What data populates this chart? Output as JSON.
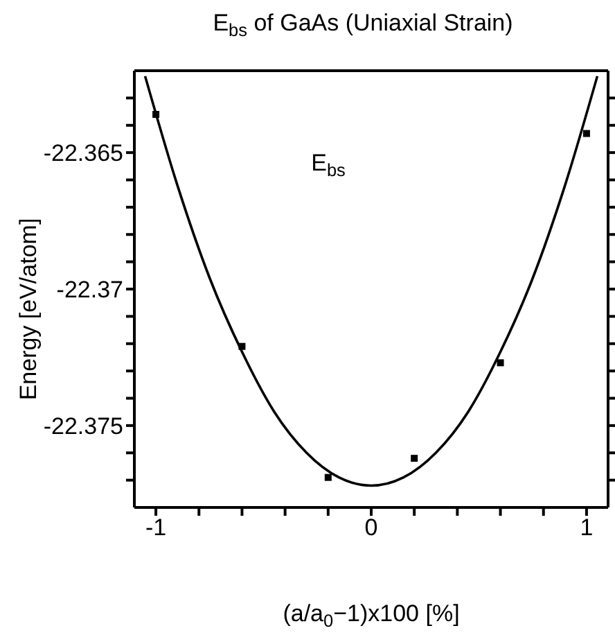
{
  "chart_data": {
    "type": "scatter",
    "title": "E$_{bs}$ of GaAs (Uniaxial Strain)",
    "xlabel": "(a/a$_{0}$−1)x100 [%]",
    "ylabel": "Energy [eV/atom]",
    "annotations": [
      "E$_{bs}$"
    ],
    "series": [
      {
        "color": "#000000",
        "marker": "square",
        "x": [
          -1.0,
          -0.6,
          -0.2,
          0.2,
          0.6,
          1.0
        ],
        "values": [
          -22.3636,
          -22.3721,
          -22.3769,
          -22.3762,
          -22.3727,
          -22.3643
        ]
      },
      {
        "type": "line",
        "color": "#000000",
        "marker": "none",
        "x": [
          -1.05,
          -0.9,
          -0.75,
          -0.6,
          -0.45,
          -0.3,
          -0.15,
          0,
          0.15,
          0.3,
          0.45,
          0.6,
          0.75,
          0.9,
          1.05
        ],
        "values": [
          -22.3622,
          -22.3662,
          -22.3696,
          -22.3723,
          -22.3745,
          -22.376,
          -22.3769,
          -22.3772,
          -22.3769,
          -22.376,
          -22.3745,
          -22.3723,
          -22.3696,
          -22.3662,
          -22.3622
        ]
      }
    ],
    "xlim": [
      -1.1,
      1.1
    ],
    "xticks": [
      -1,
      {
        "value": -0.8,
        "label": null
      },
      {
        "value": -0.6,
        "label": null
      },
      {
        "value": -0.4,
        "label": null
      },
      {
        "value": -0.2,
        "label": null
      },
      0,
      {
        "value": 0.2,
        "label": null
      },
      {
        "value": 0.4,
        "label": null
      },
      {
        "value": 0.6,
        "label": null
      },
      {
        "value": 0.8,
        "label": null
      },
      1
    ],
    "ylim": [
      -22.378,
      -22.362
    ],
    "yticks": [
      {
        "value": -22.377,
        "label": null
      },
      {
        "value": -22.376,
        "label": null
      },
      -22.375,
      {
        "value": -22.374,
        "label": null
      },
      {
        "value": -22.373,
        "label": null
      },
      {
        "value": -22.372,
        "label": null
      },
      {
        "value": -22.371,
        "label": null
      },
      -22.37,
      {
        "value": -22.369,
        "label": null
      },
      {
        "value": -22.368,
        "label": null
      },
      {
        "value": -22.367,
        "label": null
      },
      {
        "value": -22.366,
        "label": null
      },
      -22.365,
      {
        "value": -22.364,
        "label": null
      },
      {
        "value": -22.363,
        "label": null
      }
    ],
    "grid": false
  }
}
